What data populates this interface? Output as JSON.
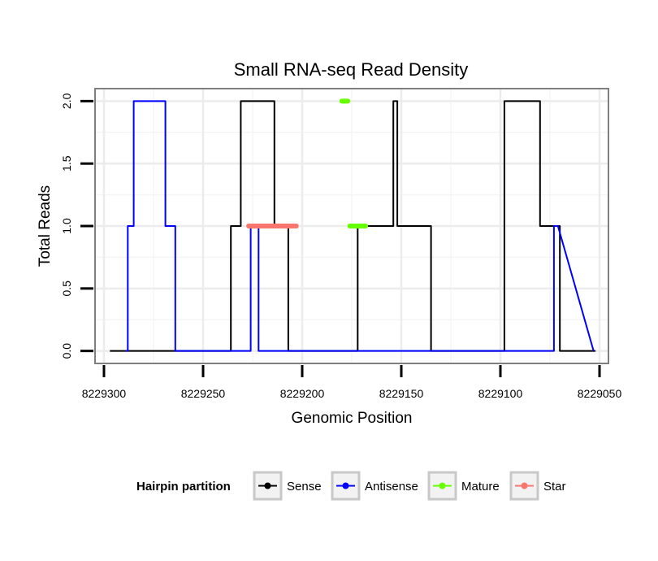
{
  "chart_data": {
    "type": "line",
    "title": "Small RNA-seq Read Density",
    "xlabel": "Genomic Position",
    "ylabel": "Total Reads",
    "xlim": [
      8229300,
      8229050
    ],
    "x_reversed": true,
    "ylim": [
      0,
      2
    ],
    "x_ticks": [
      8229300,
      8229250,
      8229200,
      8229150,
      8229100,
      8229050
    ],
    "x_tick_labels": [
      "8229300",
      "8229250",
      "8229200",
      "8229150",
      "8229100",
      "8229050"
    ],
    "y_ticks": [
      0,
      0.5,
      1,
      1.5,
      2
    ],
    "y_tick_labels": [
      "0.0",
      "0.5",
      "1.0",
      "1.5",
      "2.0"
    ],
    "grid": true,
    "legend": {
      "title": "Hairpin partition",
      "position": "bottom",
      "entries": [
        {
          "label": "Sense",
          "color": "#000000"
        },
        {
          "label": "Antisense",
          "color": "#0000ff"
        },
        {
          "label": "Mature",
          "color": "#66ff00"
        },
        {
          "label": "Star",
          "color": "#f8766d"
        }
      ]
    },
    "series": [
      {
        "name": "Sense",
        "color": "#000000",
        "x": [
          8229297,
          8229236,
          8229236,
          8229234,
          8229234,
          8229231,
          8229231,
          8229214,
          8229214,
          8229211,
          8229211,
          8229207,
          8229207,
          8229185,
          8229185,
          8229172,
          8229172,
          8229156,
          8229156,
          8229154,
          8229154,
          8229152,
          8229152,
          8229135,
          8229135,
          8229098,
          8229098,
          8229080,
          8229080,
          8229073,
          8229073,
          8229070,
          8229070,
          8229052
        ],
        "y": [
          0,
          0,
          1,
          1,
          1,
          1,
          2,
          2,
          1,
          1,
          1,
          1,
          0,
          0,
          0,
          0,
          1,
          1,
          1,
          1,
          2,
          2,
          1,
          1,
          0,
          0,
          2,
          2,
          1,
          1,
          1,
          1,
          0,
          0
        ]
      },
      {
        "name": "Antisense",
        "color": "#0000ff",
        "x": [
          8229289,
          8229288,
          8229288,
          8229286,
          8229286,
          8229285,
          8229285,
          8229269,
          8229269,
          8229266,
          8229266,
          8229264,
          8229264,
          8229226,
          8229226,
          8229222,
          8229222,
          8229172,
          8229172,
          8229135,
          8229135,
          8229073,
          8229073,
          8229071,
          8229071,
          8229053
        ],
        "y": [
          0,
          0,
          1,
          1,
          1,
          1,
          2,
          2,
          1,
          1,
          1,
          1,
          0,
          0,
          1,
          1,
          0,
          0,
          0,
          0,
          0,
          0,
          1,
          1,
          1,
          0
        ]
      },
      {
        "name": "Star",
        "color": "#f8766d",
        "x": [
          8229227,
          8229203
        ],
        "y": [
          1,
          1
        ]
      },
      {
        "name": "Mature",
        "color": "#66ff00",
        "x": [
          8229180,
          8229177,
          8229176,
          8229168
        ],
        "y": [
          2,
          2,
          1,
          1
        ],
        "segments": [
          [
            0,
            1
          ],
          [
            2,
            3
          ]
        ]
      }
    ]
  }
}
